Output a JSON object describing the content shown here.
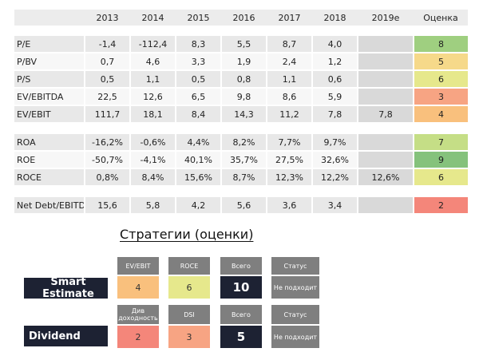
{
  "header": {
    "label": "",
    "years": [
      "2013",
      "2014",
      "2015",
      "2016",
      "2017",
      "2018",
      "2019e"
    ],
    "score_label": "Оценка"
  },
  "groups": [
    [
      {
        "label": "P/E",
        "values": [
          "-1,4",
          "-112,4",
          "8,3",
          "5,5",
          "8,7",
          "4,0"
        ],
        "e": "",
        "score": "8",
        "color": "#9fcf80"
      },
      {
        "label": "P/BV",
        "values": [
          "0,7",
          "4,6",
          "3,3",
          "1,9",
          "2,4",
          "1,2"
        ],
        "e": "",
        "score": "5",
        "color": "#f6d98a"
      },
      {
        "label": "P/S",
        "values": [
          "0,5",
          "1,1",
          "0,5",
          "0,8",
          "1,1",
          "0,6"
        ],
        "e": "",
        "score": "6",
        "color": "#e6e88c"
      },
      {
        "label": "EV/EBITDA",
        "values": [
          "22,5",
          "12,6",
          "6,5",
          "9,8",
          "8,6",
          "5,9"
        ],
        "e": "",
        "score": "3",
        "color": "#f7a483"
      },
      {
        "label": "EV/EBIT",
        "values": [
          "111,7",
          "18,1",
          "8,4",
          "14,3",
          "11,2",
          "7,8"
        ],
        "e": "7,8",
        "score": "4",
        "color": "#f9c07d"
      }
    ],
    [
      {
        "label": "ROA",
        "values": [
          "-16,2%",
          "-0,6%",
          "4,4%",
          "8,2%",
          "7,7%",
          "9,7%"
        ],
        "e": "",
        "score": "7",
        "color": "#c5de86"
      },
      {
        "label": "ROE",
        "values": [
          "-50,7%",
          "-4,1%",
          "40,1%",
          "35,7%",
          "27,5%",
          "32,6%"
        ],
        "e": "",
        "score": "9",
        "color": "#85c27c"
      },
      {
        "label": "ROCE",
        "values": [
          "0,8%",
          "8,4%",
          "15,6%",
          "8,7%",
          "12,3%",
          "12,2%"
        ],
        "e": "12,6%",
        "score": "6",
        "color": "#e6e88c"
      }
    ],
    [
      {
        "label": "Net Debt/EBITDA",
        "values": [
          "15,6",
          "5,8",
          "4,2",
          "5,6",
          "3,6",
          "3,4"
        ],
        "e": "",
        "score": "2",
        "color": "#f4867a"
      }
    ]
  ],
  "strategies": {
    "title": "Стратегии (оценки)",
    "smart": {
      "name": "Smart Estimate",
      "h1": "EV/EBIT",
      "v1": "4",
      "c1": "#f9c07d",
      "h2": "ROCE",
      "v2": "6",
      "c2": "#e6e88c",
      "total_label": "Всего",
      "total": "10",
      "status_label": "Статус",
      "status": "Не подходит"
    },
    "dividend": {
      "name": "Dividend",
      "h1": "Див доходность",
      "v1": "2",
      "c1": "#f4867a",
      "h2": "DSI",
      "v2": "3",
      "c2": "#f7a483",
      "total_label": "Всего",
      "total": "5",
      "status_label": "Статус",
      "status": "Не подходит"
    }
  }
}
